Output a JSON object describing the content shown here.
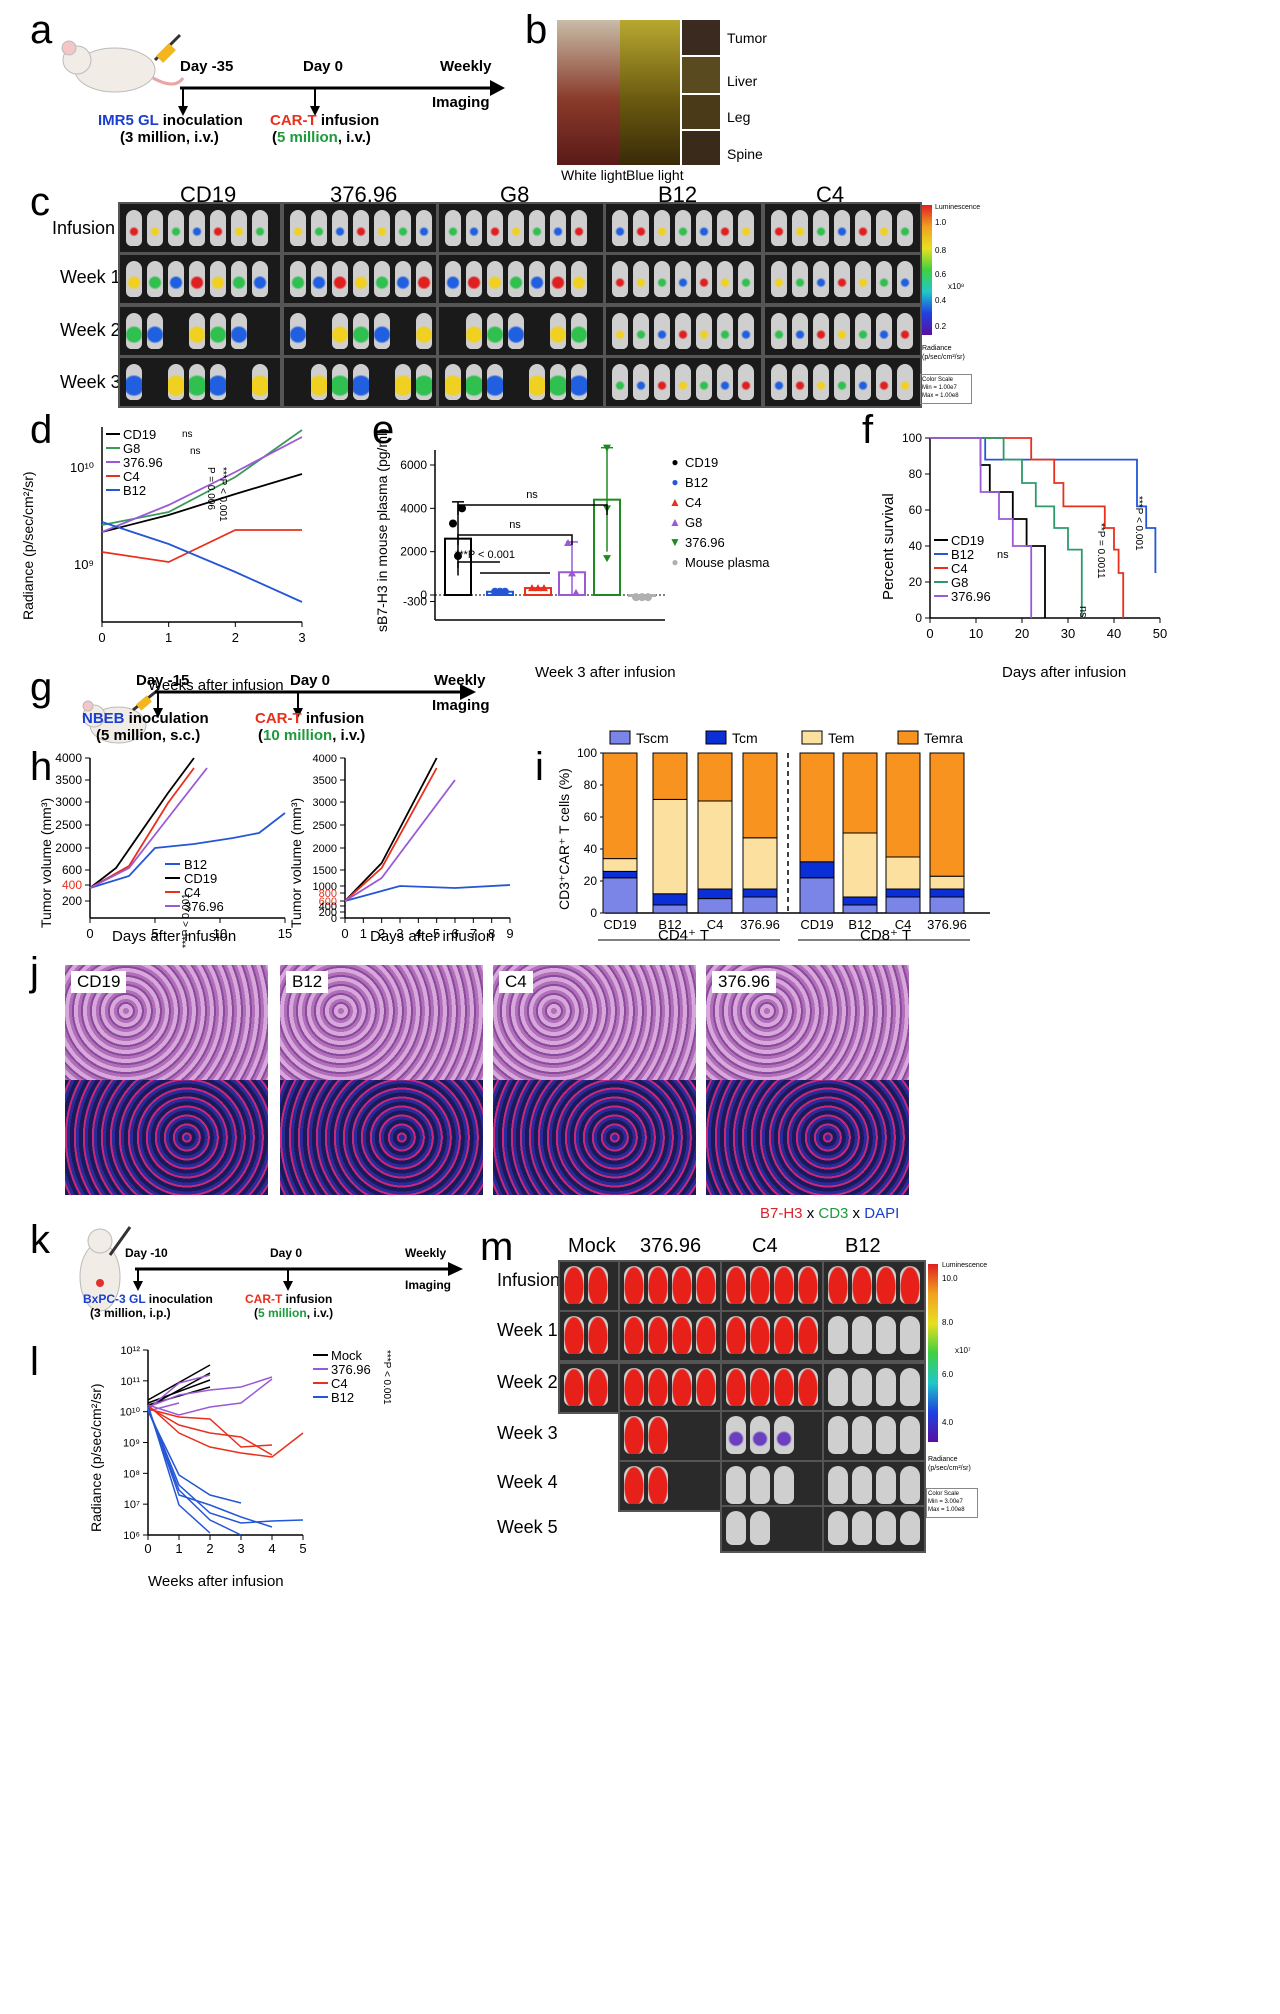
{
  "panels": {
    "a": "a",
    "b": "b",
    "c": "c",
    "d": "d",
    "e": "e",
    "f": "f",
    "g": "g",
    "h": "h",
    "i": "i",
    "j": "j",
    "k": "k",
    "l": "l",
    "m": "m"
  },
  "a": {
    "day1": "Day -35",
    "day2": "Day 0",
    "day3": "Weekly",
    "imaging": "Imaging",
    "inoc_name": "IMR5 GL",
    "inoc_rest": " inoculation",
    "inoc_dose": "(3 million, i.v.)",
    "cart": "CAR-T",
    "cart_rest": " infusion",
    "open": "(",
    "dose": "5 million",
    "dose_rest": ", i.v.)"
  },
  "b": {
    "white": "White light",
    "blue": "Blue light",
    "organs": [
      "Tumor",
      "Liver",
      "Leg",
      "Spine"
    ]
  },
  "c": {
    "groups": [
      "CD19",
      "376.96",
      "G8",
      "B12",
      "C4"
    ],
    "rows": [
      "Infusion",
      "Week 1",
      "Week 2",
      "Week 3"
    ],
    "scale_title": "Luminescence",
    "scale_top": "1.0",
    "scale_vals": [
      "0.8",
      "0.6",
      "0.4",
      "0.2"
    ],
    "scale_unit": "x10⁸",
    "radiance": "Radiance",
    "radiance_unit": "(p/sec/cm²/sr)",
    "colorscale": "Color Scale",
    "min": "Min = 1.00e7",
    "max": "Max = 1.00e8"
  },
  "d": {
    "ylabel": "Radiance (p/sec/cm²/sr)",
    "xlabel": "Weeks after infusion",
    "yticks": [
      "10¹⁰",
      "10⁹"
    ],
    "xticks": [
      "0",
      "1",
      "2",
      "3"
    ],
    "legend": [
      "CD19",
      "G8",
      "376.96",
      "C4",
      "B12"
    ],
    "colors": [
      "#000000",
      "#3a9a5a",
      "#9b59d6",
      "#e8301c",
      "#2456d6"
    ],
    "stats": [
      "ns",
      "ns",
      "P = 0.006",
      "***P < 0.001"
    ]
  },
  "e": {
    "ylabel": "sB7-H3 in mouse plasma (pg/ml)",
    "xlabel": "Week 3 after infusion",
    "yticks": [
      "6000",
      "4000",
      "2000",
      "0",
      "-300"
    ],
    "legend": [
      "CD19",
      "B12",
      "C4",
      "G8",
      "376.96",
      "Mouse plasma"
    ],
    "colors": [
      "#000000",
      "#2456d6",
      "#e8301c",
      "#9b59d6",
      "#1d8a1d",
      "#b0b0b0"
    ],
    "markers": [
      "●",
      "●",
      "▲",
      "▲",
      "▼",
      "●"
    ],
    "stat1": "***P < 0.001",
    "ns1": "ns",
    "ns2": "ns"
  },
  "f": {
    "ylabel": "Percent survival",
    "xlabel": "Days after infusion",
    "yticks": [
      "100",
      "80",
      "60",
      "40",
      "20",
      "0"
    ],
    "xticks": [
      "0",
      "10",
      "20",
      "30",
      "40",
      "50"
    ],
    "legend": [
      "CD19",
      "B12",
      "C4",
      "G8",
      "376.96"
    ],
    "colors": [
      "#000000",
      "#2456d6",
      "#e8301c",
      "#2e9a6a",
      "#9b59d6"
    ],
    "stats": [
      "ns",
      "ns",
      "**P = 0.0011",
      "***P < 0.001"
    ]
  },
  "g": {
    "day1": "Day -15",
    "day2": "Day 0",
    "day3": "Weekly",
    "imaging": "Imaging",
    "inoc_name": "NBEB",
    "inoc_rest": " inoculation",
    "inoc_dose": "(5 million, s.c.)",
    "cart": "CAR-T",
    "cart_rest": " infusion",
    "open": "(",
    "dose": "10 million",
    "dose_rest": ", i.v.)"
  },
  "h": {
    "ylabel": "Tumor volume (mm³)",
    "xlabel": "Days after infusion",
    "left_yticks": [
      "4000",
      "3500",
      "3000",
      "2500",
      "2000",
      "600",
      "400",
      "200"
    ],
    "left_xticks": [
      "0",
      "5",
      "10",
      "15"
    ],
    "right_yticks": [
      "4000",
      "3500",
      "3000",
      "2500",
      "2000",
      "1500",
      "1000",
      "800",
      "600",
      "400",
      "200",
      "0"
    ],
    "right_xticks": [
      "0",
      "1",
      "2",
      "3",
      "4",
      "5",
      "6",
      "7",
      "8",
      "9"
    ],
    "legend": [
      "B12",
      "CD19",
      "C4",
      "376.96"
    ],
    "colors": [
      "#2456d6",
      "#000000",
      "#e8301c",
      "#9b59d6"
    ],
    "stat": "***P < 0.001"
  },
  "i": {
    "legend": [
      "Tscm",
      "Tcm",
      "Tem",
      "Temra"
    ],
    "colors": [
      "#7b85e8",
      "#0a2fd6",
      "#fbe0a0",
      "#f7931e"
    ],
    "ylabel": "CD3⁺CAR⁺ T cells (%)",
    "yticks": [
      "100",
      "80",
      "60",
      "40",
      "20",
      "0"
    ],
    "xticks": [
      "CD19",
      "B12",
      "C4",
      "376.96",
      "CD19",
      "B12",
      "C4",
      "376.96"
    ],
    "group1": "CD4⁺ T",
    "group2": "CD8⁺ T",
    "bars": [
      {
        "tscm": 22,
        "tcm": 4,
        "tem": 8,
        "temra": 66
      },
      {
        "tscm": 5,
        "tcm": 7,
        "tem": 59,
        "temra": 29
      },
      {
        "tscm": 9,
        "tcm": 6,
        "tem": 55,
        "temra": 30
      },
      {
        "tscm": 10,
        "tcm": 5,
        "tem": 32,
        "temra": 53
      },
      {
        "tscm": 22,
        "tcm": 10,
        "tem": 0,
        "temra": 68
      },
      {
        "tscm": 5,
        "tcm": 5,
        "tem": 40,
        "temra": 50
      },
      {
        "tscm": 10,
        "tcm": 5,
        "tem": 20,
        "temra": 65
      },
      {
        "tscm": 10,
        "tcm": 5,
        "tem": 8,
        "temra": 77
      }
    ]
  },
  "j": {
    "labels": [
      "CD19",
      "B12",
      "C4",
      "376.96"
    ],
    "stain_a": "B7-H3",
    "stain_x1": " x ",
    "stain_b": "CD3",
    "stain_x2": " x ",
    "stain_c": "DAPI"
  },
  "k": {
    "day1": "Day -10",
    "day2": "Day 0",
    "day3": "Weekly",
    "imaging": "Imaging",
    "inoc_name": "BxPC-3 GL",
    "inoc_rest": " inoculation",
    "inoc_dose": "(3 million, i.p.)",
    "cart": "CAR-T",
    "cart_rest": " infusion",
    "open": "(",
    "dose": "5 million",
    "dose_rest": ", i.v.)"
  },
  "l": {
    "ylabel": "Radiance (p/sec/cm²/sr)",
    "xlabel": "Weeks after infusion",
    "yticks": [
      "10¹²",
      "10¹¹",
      "10¹⁰",
      "10⁹",
      "10⁸",
      "10⁷",
      "10⁶"
    ],
    "xticks": [
      "0",
      "1",
      "2",
      "3",
      "4",
      "5"
    ],
    "legend": [
      "Mock",
      "376.96",
      "C4",
      "B12"
    ],
    "colors": [
      "#000000",
      "#9b59d6",
      "#e8301c",
      "#2456d6"
    ],
    "stat": "***P < 0.001"
  },
  "m": {
    "groups": [
      "Mock",
      "376.96",
      "C4",
      "B12"
    ],
    "rows": [
      "Infusion",
      "Week 1",
      "Week 2",
      "Week 3",
      "Week 4",
      "Week 5"
    ],
    "scale_title": "Luminescence",
    "scale_top": "10.0",
    "scale_vals": [
      "8.0",
      "6.0",
      "4.0"
    ],
    "scale_unit": "x10⁷",
    "radiance": "Radiance",
    "radiance_unit": "(p/sec/cm²/sr)",
    "colorscale": "Color Scale",
    "min": "Min = 3.00e7",
    "max": "Max = 1.00e8"
  }
}
